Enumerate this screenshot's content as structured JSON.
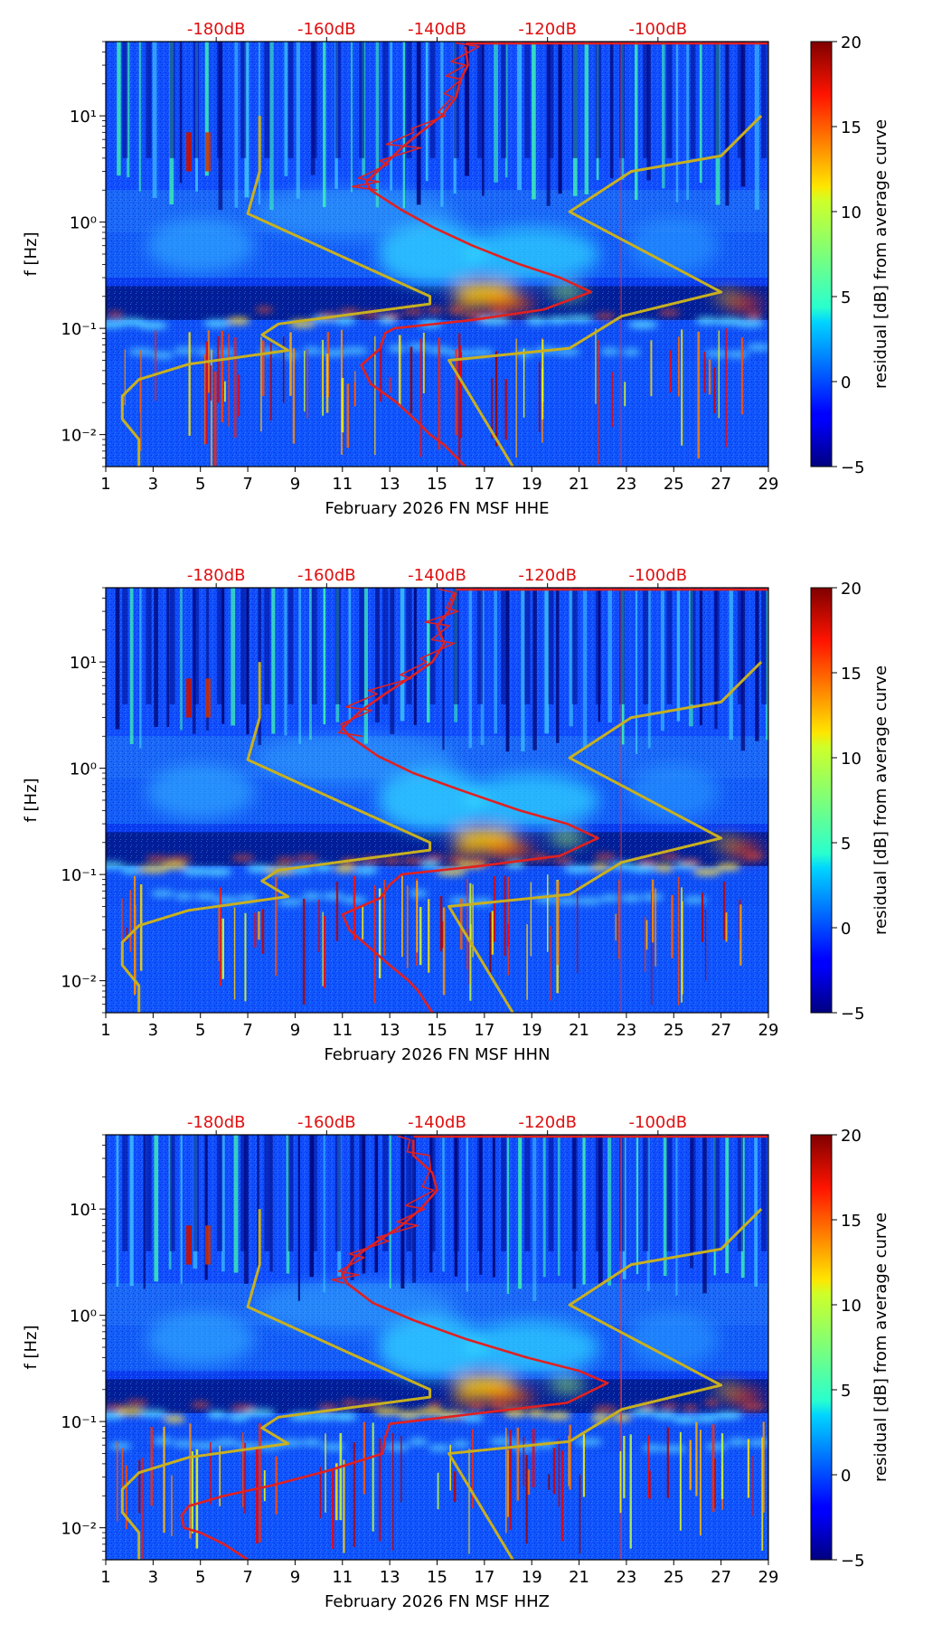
{
  "chart_data": [
    {
      "type": "heatmap",
      "channel": "HHE",
      "xlabel": "February 2026 FN MSF  HHE",
      "ylabel": "f [Hz]",
      "xticks": [
        "1",
        "3",
        "5",
        "7",
        "9",
        "11",
        "13",
        "15",
        "17",
        "19",
        "21",
        "23",
        "25",
        "27",
        "29"
      ],
      "xlim": [
        1,
        29
      ],
      "ylim": [
        0.005,
        50
      ],
      "ytick_labels": [
        "10⁻²",
        "10⁻¹",
        "10⁰",
        "10¹"
      ],
      "top_ticks": [
        "-180dB",
        "-160dB",
        "-140dB",
        "-120dB",
        "-100dB"
      ],
      "colorbar": {
        "label": "residual [dB] from average curve",
        "range": [
          -5,
          20
        ],
        "ticks": [
          "−5",
          "0",
          "5",
          "10",
          "15",
          "20"
        ]
      },
      "reference_curves": {
        "low_model": {
          "color": "#c8b020",
          "points": [
            [
              2.4,
              0.005
            ],
            [
              2.4,
              0.009
            ],
            [
              1.7,
              0.014
            ],
            [
              1.7,
              0.023
            ],
            [
              2.4,
              0.033
            ],
            [
              4.5,
              0.046
            ],
            [
              8.7,
              0.062
            ],
            [
              7.6,
              0.087
            ],
            [
              8.3,
              0.11
            ],
            [
              14.7,
              0.17
            ],
            [
              14.7,
              0.2
            ],
            [
              11.5,
              0.42
            ],
            [
              7.0,
              1.2
            ],
            [
              7.5,
              3
            ],
            [
              7.5,
              10
            ]
          ]
        },
        "high_model": {
          "color": "#c8b020",
          "points": [
            [
              18.2,
              0.005
            ],
            [
              15.5,
              0.05
            ],
            [
              20.6,
              0.065
            ],
            [
              22.8,
              0.13
            ],
            [
              27,
              0.22
            ],
            [
              20.6,
              1.25
            ],
            [
              23.2,
              3
            ],
            [
              27,
              4.2
            ],
            [
              28.7,
              10
            ]
          ]
        },
        "mean_psd": {
          "color": "#e02020",
          "points": [
            [
              16.2,
              0.005
            ],
            [
              15.3,
              0.008
            ],
            [
              14.7,
              0.01
            ],
            [
              14.2,
              0.013
            ],
            [
              13.3,
              0.02
            ],
            [
              12.2,
              0.03
            ],
            [
              11.8,
              0.045
            ],
            [
              12.6,
              0.065
            ],
            [
              12.8,
              0.09
            ],
            [
              13.2,
              0.1
            ],
            [
              16.5,
              0.12
            ],
            [
              19.5,
              0.15
            ],
            [
              21.5,
              0.22
            ],
            [
              20.2,
              0.3
            ],
            [
              18.5,
              0.4
            ],
            [
              16.5,
              0.6
            ],
            [
              14.8,
              0.9
            ],
            [
              13.5,
              1.3
            ],
            [
              12.2,
              2
            ],
            [
              12.0,
              2.4
            ],
            [
              12.8,
              3.5
            ],
            [
              13.5,
              5
            ],
            [
              14.3,
              7
            ],
            [
              15.2,
              10
            ],
            [
              15.8,
              15
            ],
            [
              16.0,
              22
            ],
            [
              16.3,
              30
            ],
            [
              16.2,
              45
            ]
          ]
        }
      }
    },
    {
      "type": "heatmap",
      "channel": "HHN",
      "xlabel": "February 2026 FN MSF  HHN",
      "ylabel": "f [Hz]",
      "xticks": [
        "1",
        "3",
        "5",
        "7",
        "9",
        "11",
        "13",
        "15",
        "17",
        "19",
        "21",
        "23",
        "25",
        "27",
        "29"
      ],
      "xlim": [
        1,
        29
      ],
      "ylim": [
        0.005,
        50
      ],
      "ytick_labels": [
        "10⁻²",
        "10⁻¹",
        "10⁰",
        "10¹"
      ],
      "top_ticks": [
        "-180dB",
        "-160dB",
        "-140dB",
        "-120dB",
        "-100dB"
      ],
      "colorbar": {
        "label": "residual [dB] from average curve",
        "range": [
          -5,
          20
        ],
        "ticks": [
          "−5",
          "0",
          "5",
          "10",
          "15",
          "20"
        ]
      },
      "reference_curves": {
        "low_model": {
          "color": "#c8b020",
          "points": [
            [
              2.4,
              0.005
            ],
            [
              2.4,
              0.009
            ],
            [
              1.7,
              0.014
            ],
            [
              1.7,
              0.023
            ],
            [
              2.4,
              0.033
            ],
            [
              4.5,
              0.046
            ],
            [
              8.7,
              0.062
            ],
            [
              7.6,
              0.087
            ],
            [
              8.3,
              0.11
            ],
            [
              14.7,
              0.17
            ],
            [
              14.7,
              0.2
            ],
            [
              11.5,
              0.42
            ],
            [
              7.0,
              1.2
            ],
            [
              7.5,
              3
            ],
            [
              7.5,
              10
            ]
          ]
        },
        "high_model": {
          "color": "#c8b020",
          "points": [
            [
              18.2,
              0.005
            ],
            [
              15.5,
              0.05
            ],
            [
              20.6,
              0.065
            ],
            [
              22.8,
              0.13
            ],
            [
              27,
              0.22
            ],
            [
              20.6,
              1.25
            ],
            [
              23.2,
              3
            ],
            [
              27,
              4.2
            ],
            [
              28.7,
              10
            ]
          ]
        },
        "mean_psd": {
          "color": "#e02020",
          "points": [
            [
              14.8,
              0.005
            ],
            [
              14.2,
              0.008
            ],
            [
              13.8,
              0.01
            ],
            [
              13.0,
              0.014
            ],
            [
              12.2,
              0.02
            ],
            [
              11.3,
              0.03
            ],
            [
              11.0,
              0.042
            ],
            [
              12.6,
              0.06
            ],
            [
              13.0,
              0.08
            ],
            [
              13.5,
              0.1
            ],
            [
              16.8,
              0.12
            ],
            [
              20.2,
              0.15
            ],
            [
              21.8,
              0.22
            ],
            [
              20.5,
              0.3
            ],
            [
              18.5,
              0.4
            ],
            [
              16.2,
              0.6
            ],
            [
              14.0,
              0.9
            ],
            [
              12.5,
              1.3
            ],
            [
              11.3,
              2
            ],
            [
              11.0,
              2.4
            ],
            [
              11.8,
              3.5
            ],
            [
              12.8,
              5
            ],
            [
              13.8,
              7
            ],
            [
              14.8,
              10
            ],
            [
              15.3,
              15
            ],
            [
              15.0,
              22
            ],
            [
              15.5,
              30
            ],
            [
              15.8,
              45
            ]
          ]
        }
      }
    },
    {
      "type": "heatmap",
      "channel": "HHZ",
      "xlabel": "February 2026 FN MSF  HHZ",
      "ylabel": "f [Hz]",
      "xticks": [
        "1",
        "3",
        "5",
        "7",
        "9",
        "11",
        "13",
        "15",
        "17",
        "19",
        "21",
        "23",
        "25",
        "27",
        "29"
      ],
      "xlim": [
        1,
        29
      ],
      "ylim": [
        0.005,
        50
      ],
      "ytick_labels": [
        "10⁻²",
        "10⁻¹",
        "10⁰",
        "10¹"
      ],
      "top_ticks": [
        "-180dB",
        "-160dB",
        "-140dB",
        "-120dB",
        "-100dB"
      ],
      "colorbar": {
        "label": "residual [dB] from average curve",
        "range": [
          -5,
          20
        ],
        "ticks": [
          "−5",
          "0",
          "5",
          "10",
          "15",
          "20"
        ]
      },
      "reference_curves": {
        "low_model": {
          "color": "#c8b020",
          "points": [
            [
              2.4,
              0.005
            ],
            [
              2.4,
              0.009
            ],
            [
              1.7,
              0.014
            ],
            [
              1.7,
              0.023
            ],
            [
              2.4,
              0.033
            ],
            [
              4.5,
              0.046
            ],
            [
              8.7,
              0.062
            ],
            [
              7.6,
              0.087
            ],
            [
              8.3,
              0.11
            ],
            [
              14.7,
              0.17
            ],
            [
              14.7,
              0.2
            ],
            [
              11.5,
              0.42
            ],
            [
              7.0,
              1.2
            ],
            [
              7.5,
              3
            ],
            [
              7.5,
              10
            ]
          ]
        },
        "high_model": {
          "color": "#c8b020",
          "points": [
            [
              18.2,
              0.005
            ],
            [
              15.5,
              0.05
            ],
            [
              20.6,
              0.065
            ],
            [
              22.8,
              0.13
            ],
            [
              27,
              0.22
            ],
            [
              20.6,
              1.25
            ],
            [
              23.2,
              3
            ],
            [
              27,
              4.2
            ],
            [
              28.7,
              10
            ]
          ]
        },
        "mean_psd": {
          "color": "#e02020",
          "points": [
            [
              7.0,
              0.005
            ],
            [
              6.0,
              0.007
            ],
            [
              5.0,
              0.009
            ],
            [
              4.3,
              0.01
            ],
            [
              4.2,
              0.013
            ],
            [
              4.5,
              0.016
            ],
            [
              6.0,
              0.02
            ],
            [
              8.0,
              0.025
            ],
            [
              10.5,
              0.035
            ],
            [
              12.7,
              0.05
            ],
            [
              12.8,
              0.07
            ],
            [
              13.0,
              0.095
            ],
            [
              16.8,
              0.12
            ],
            [
              20.5,
              0.15
            ],
            [
              22.2,
              0.23
            ],
            [
              21.0,
              0.3
            ],
            [
              18.8,
              0.4
            ],
            [
              16.2,
              0.6
            ],
            [
              14.0,
              0.9
            ],
            [
              12.3,
              1.3
            ],
            [
              11.2,
              2
            ],
            [
              11.0,
              2.4
            ],
            [
              11.5,
              3.5
            ],
            [
              12.5,
              5
            ],
            [
              13.5,
              7
            ],
            [
              14.3,
              10
            ],
            [
              15.0,
              15
            ],
            [
              14.8,
              22
            ],
            [
              14.0,
              32
            ],
            [
              14.0,
              45
            ]
          ]
        }
      }
    }
  ]
}
